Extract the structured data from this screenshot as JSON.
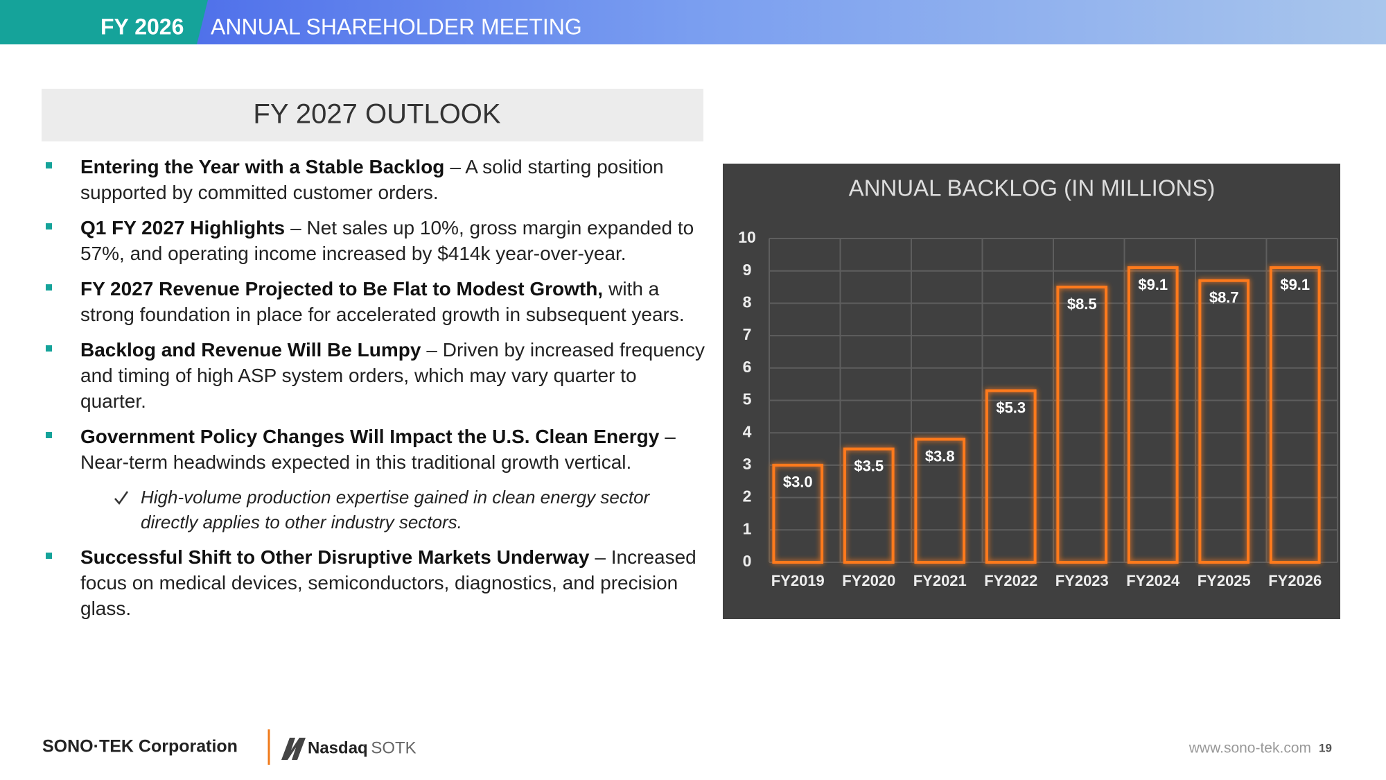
{
  "header": {
    "year": "FY 2026",
    "title": "ANNUAL SHAREHOLDER MEETING"
  },
  "outlook": {
    "title": "FY 2027 OUTLOOK",
    "bullets": [
      {
        "bold": "Entering the Year with a Stable Backlog",
        "text": "– A solid starting position supported by committed customer orders."
      },
      {
        "bold": "Q1 FY 2027 Highlights",
        "text": "– Net sales up 10%, gross margin expanded to 57%, and operating income increased by $414k year-over-year."
      },
      {
        "bold": "FY 2027 Revenue Projected to Be Flat to Modest Growth,",
        "text": "with a strong foundation in place for accelerated growth in subsequent years."
      },
      {
        "bold": "Backlog and Revenue Will Be Lumpy",
        "text": "– Driven by increased frequency and timing of high ASP system orders, which may vary quarter to quarter."
      },
      {
        "bold": "Government Policy Changes Will Impact the U.S. Clean Energy",
        "text": "– Near-term headwinds expected in this traditional growth vertical.",
        "note": "High-volume production expertise gained in clean energy sector directly applies to other industry sectors."
      },
      {
        "bold": "Successful Shift to Other Disruptive Markets Underway",
        "text": "– Increased focus on medical devices, semiconductors, diagnostics, and precision glass."
      }
    ]
  },
  "chart_data": {
    "type": "bar",
    "title": "ANNUAL BACKLOG (IN MILLIONS)",
    "categories": [
      "FY2019",
      "FY2020",
      "FY2021",
      "FY2022",
      "FY2023",
      "FY2024",
      "FY2025",
      "FY2026"
    ],
    "values": [
      3.0,
      3.5,
      3.8,
      5.3,
      8.5,
      9.1,
      8.7,
      9.1
    ],
    "value_labels": [
      "$3.0",
      "$3.5",
      "$3.8",
      "$5.3",
      "$8.5",
      "$9.1",
      "$8.7",
      "$9.1"
    ],
    "color": "#ff7a1f",
    "ylim": [
      0,
      10
    ],
    "yticks": [
      0,
      1,
      2,
      3,
      4,
      5,
      6,
      7,
      8,
      9,
      10
    ],
    "grid": true
  },
  "footer": {
    "company": "SONO·TEK Corporation",
    "exchange": "Nasdaq",
    "ticker": ": SOTK",
    "url": "www.sono-tek.com",
    "page": "19"
  }
}
